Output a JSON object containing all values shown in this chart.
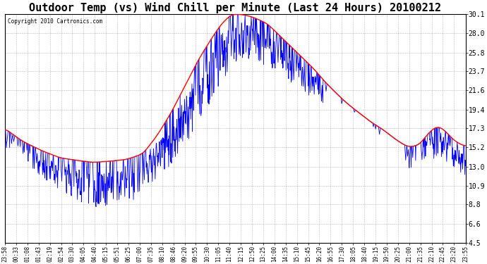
{
  "title": "Outdoor Temp (vs) Wind Chill per Minute (Last 24 Hours) 20100212",
  "copyright": "Copyright 2010 Cartronics.com",
  "y_ticks": [
    4.5,
    6.6,
    8.8,
    10.9,
    13.0,
    15.2,
    17.3,
    19.4,
    21.6,
    23.7,
    25.8,
    28.0,
    30.1
  ],
  "y_min": 4.5,
  "y_max": 30.1,
  "red_color": "#ff0000",
  "blue_color": "#0000ff",
  "background_color": "#ffffff",
  "grid_color": "#888888",
  "title_fontsize": 11,
  "x_labels": [
    "23:58",
    "00:33",
    "01:08",
    "01:43",
    "02:19",
    "02:54",
    "03:30",
    "04:05",
    "04:40",
    "05:15",
    "05:51",
    "06:25",
    "07:00",
    "07:35",
    "08:10",
    "08:46",
    "09:20",
    "09:55",
    "10:30",
    "11:05",
    "11:40",
    "12:15",
    "12:50",
    "13:25",
    "14:00",
    "14:35",
    "15:10",
    "15:45",
    "16:20",
    "16:55",
    "17:30",
    "18:05",
    "18:40",
    "19:15",
    "19:50",
    "20:25",
    "21:00",
    "21:35",
    "22:10",
    "22:45",
    "23:20",
    "23:55"
  ]
}
